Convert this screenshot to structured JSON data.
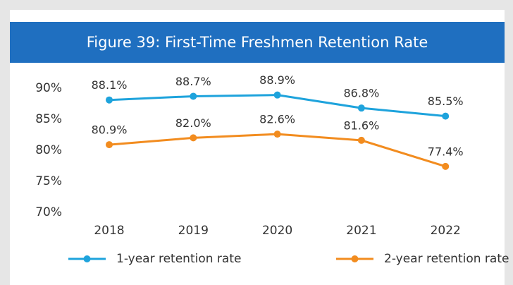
{
  "chart_data": {
    "type": "line",
    "title": "Figure 39: First-Time Freshmen Retention Rate",
    "categories": [
      "2018",
      "2019",
      "2020",
      "2021",
      "2022"
    ],
    "series": [
      {
        "name": "1-year retention rate",
        "color": "#1ea3dc",
        "values": [
          88.1,
          88.7,
          88.9,
          86.8,
          85.5
        ],
        "value_labels": [
          "88.1%",
          "88.7%",
          "88.9%",
          "86.8%",
          "85.5%"
        ]
      },
      {
        "name": "2-year retention rate",
        "color": "#f28c1f",
        "values": [
          80.9,
          82.0,
          82.6,
          81.6,
          77.4
        ],
        "value_labels": [
          "80.9%",
          "82.0%",
          "82.6%",
          "81.6%",
          "77.4%"
        ]
      }
    ],
    "ylim": [
      70,
      90
    ],
    "yticks": [
      {
        "value": 70,
        "label": "70%"
      },
      {
        "value": 75,
        "label": "75%"
      },
      {
        "value": 80,
        "label": "80%"
      },
      {
        "value": 85,
        "label": "85%"
      },
      {
        "value": 90,
        "label": "90%"
      }
    ],
    "grid": false,
    "legend": "bottom"
  }
}
